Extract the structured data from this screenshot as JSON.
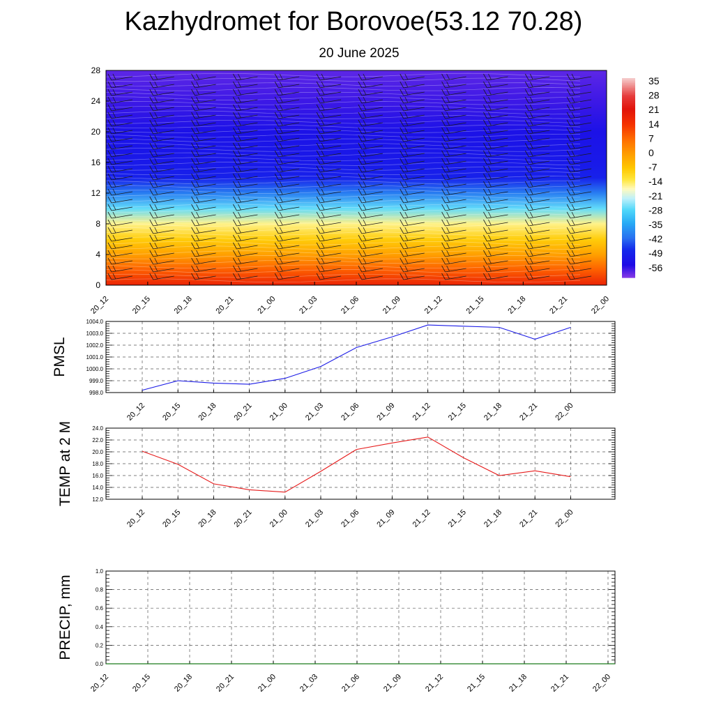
{
  "title": "Kazhydromet for Borovoe(53.12 70.28)",
  "subtitle": "20 June 2025",
  "colors": {
    "pmsl_line": "#1a1ae6",
    "temp_line": "#e61a1a",
    "precip_line": "#1a7a1a",
    "grid": "#555555"
  },
  "chart_data": [
    {
      "type": "heatmap",
      "title": "",
      "xlabel": "",
      "ylabel": "",
      "x_ticks": [
        "20_12",
        "20_15",
        "20_18",
        "20_21",
        "21_00",
        "21_03",
        "21_06",
        "21_09",
        "21_12",
        "21_15",
        "21_18",
        "21_21",
        "22_00"
      ],
      "y_ticks": [
        "0",
        "4",
        "8",
        "12",
        "16",
        "20",
        "24",
        "28"
      ],
      "ylim": [
        0,
        28
      ],
      "colorbar_labels": [
        "35",
        "28",
        "21",
        "14",
        "7",
        "0",
        "-7",
        "-14",
        "-21",
        "-28",
        "-35",
        "-42",
        "-49",
        "-56"
      ],
      "colorbar_range": [
        -63,
        42
      ],
      "temperature_profile": [
        {
          "height": 0,
          "value": 22
        },
        {
          "height": 2,
          "value": 12
        },
        {
          "height": 4,
          "value": 2
        },
        {
          "height": 6,
          "value": -6
        },
        {
          "height": 8,
          "value": -14
        },
        {
          "height": 10,
          "value": -26
        },
        {
          "height": 12,
          "value": -40
        },
        {
          "height": 14,
          "value": -50
        },
        {
          "height": 16,
          "value": -52
        },
        {
          "height": 20,
          "value": -54
        },
        {
          "height": 24,
          "value": -58
        },
        {
          "height": 28,
          "value": -60
        }
      ],
      "wind_barbs": true,
      "contours": true
    },
    {
      "type": "line",
      "ylabel": "PMSL",
      "categories": [
        "20_12",
        "20_15",
        "20_18",
        "20_21",
        "21_00",
        "21_03",
        "21_06",
        "21_09",
        "21_12",
        "21_15",
        "21_18",
        "21_21",
        "22_00"
      ],
      "ylim": [
        998.0,
        1004.0
      ],
      "y_ticks": [
        "998.0",
        "999.0",
        "1000.0",
        "1001.0",
        "1002.0",
        "1003.0",
        "1004.0"
      ],
      "series": [
        {
          "values": [
            998.2,
            999.0,
            998.8,
            998.7,
            999.2,
            1000.2,
            1001.8,
            1002.7,
            1003.7,
            1003.6,
            1003.5,
            1002.5,
            1003.5
          ]
        }
      ],
      "grid": true
    },
    {
      "type": "line",
      "ylabel": "TEMP at 2 M",
      "categories": [
        "20_12",
        "20_15",
        "20_18",
        "20_21",
        "21_00",
        "21_03",
        "21_06",
        "21_09",
        "21_12",
        "21_15",
        "21_18",
        "21_21",
        "22_00"
      ],
      "ylim": [
        12.0,
        24.0
      ],
      "y_ticks": [
        "12.0",
        "14.0",
        "16.0",
        "18.0",
        "20.0",
        "22.0",
        "24.0"
      ],
      "series": [
        {
          "values": [
            20.1,
            17.9,
            14.6,
            13.6,
            13.2,
            16.7,
            20.4,
            21.5,
            22.5,
            19.0,
            16.0,
            16.8,
            15.8
          ]
        }
      ],
      "grid": true
    },
    {
      "type": "line",
      "ylabel": "PRECIP, mm",
      "categories": [
        "20_12",
        "20_15",
        "20_18",
        "20_21",
        "21_00",
        "21_03",
        "21_06",
        "21_09",
        "21_12",
        "21_15",
        "21_18",
        "21_21",
        "22_00"
      ],
      "ylim": [
        0.0,
        1.0
      ],
      "y_ticks": [
        "0.0",
        "0.2",
        "0.4",
        "0.6",
        "0.8",
        "1.0"
      ],
      "series": [
        {
          "values": [
            0,
            0,
            0,
            0,
            0,
            0,
            0,
            0,
            0,
            0,
            0,
            0,
            0
          ]
        }
      ],
      "grid": true
    }
  ]
}
